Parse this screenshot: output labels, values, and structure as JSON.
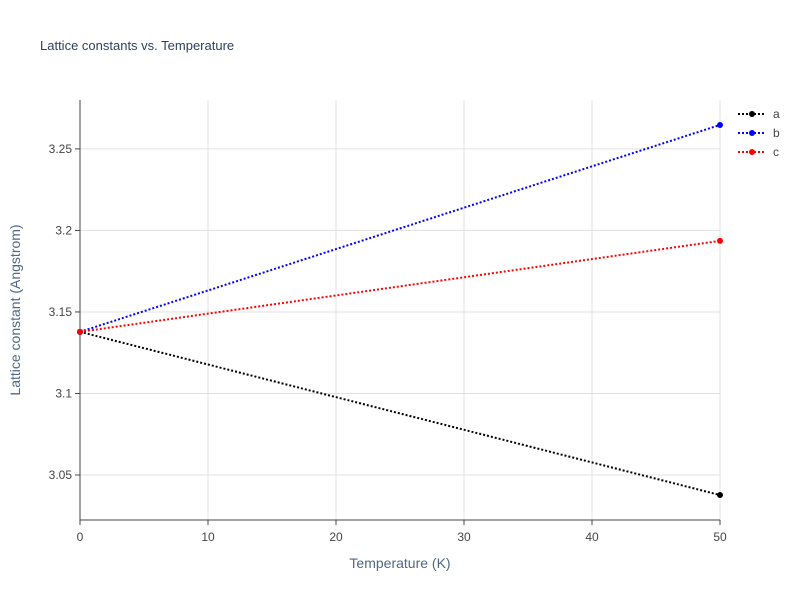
{
  "chart_data": {
    "type": "line",
    "title": "Lattice constants vs. Temperature",
    "xlabel": "Temperature (K)",
    "ylabel": "Lattice constant (Angstrom)",
    "x": [
      0,
      50
    ],
    "series": [
      {
        "name": "a",
        "color": "#000000",
        "values": [
          3.1378,
          3.0377
        ]
      },
      {
        "name": "b",
        "color": "#0000ff",
        "values": [
          3.1378,
          3.2647
        ]
      },
      {
        "name": "c",
        "color": "#ff0000",
        "values": [
          3.1378,
          3.1936
        ]
      }
    ],
    "xlim": [
      0,
      50
    ],
    "xticks": [
      0,
      10,
      20,
      30,
      40,
      50
    ],
    "ylim": [
      3.0224,
      3.28
    ],
    "yticks": [
      3.05,
      3.1,
      3.15,
      3.2,
      3.25
    ],
    "grid": true,
    "legend": "right"
  }
}
